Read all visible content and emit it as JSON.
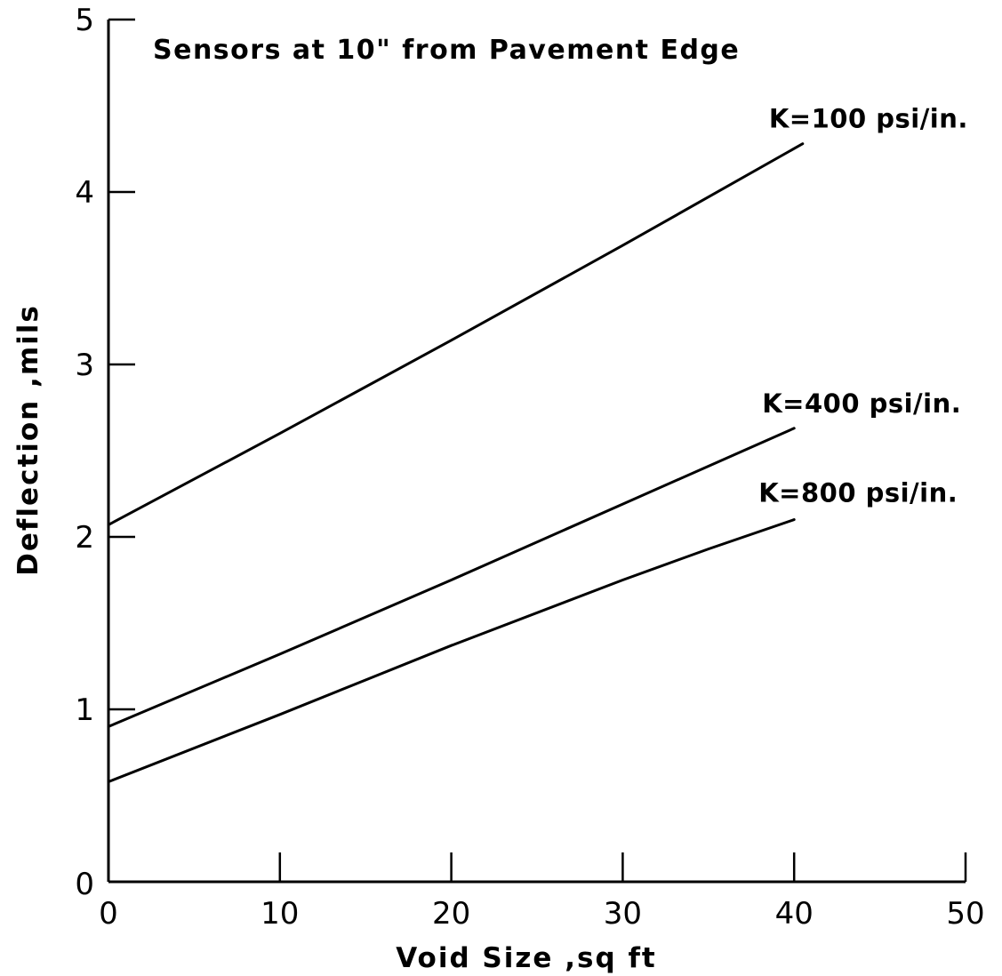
{
  "chart_data": {
    "type": "line",
    "title": "Sensors at 10\" from Pavement Edge",
    "xlabel": "Void Size ,sq ft",
    "ylabel": "Deflection ,mils",
    "xlim": [
      0,
      50
    ],
    "ylim": [
      0,
      5
    ],
    "x_ticks": [
      "0",
      "10",
      "20",
      "30",
      "40",
      "50"
    ],
    "y_ticks": [
      "0",
      "1",
      "2",
      "3",
      "4",
      "5"
    ],
    "grid": false,
    "legend": "inline labels at line ends",
    "series": [
      {
        "name": "K=100 psi/in.",
        "x": [
          0,
          10,
          20,
          30,
          40.5
        ],
        "y": [
          2.07,
          2.6,
          3.14,
          3.69,
          4.28
        ]
      },
      {
        "name": "K=400 psi/in.",
        "x": [
          0,
          10,
          20,
          30,
          40
        ],
        "y": [
          0.9,
          1.32,
          1.75,
          2.19,
          2.63
        ]
      },
      {
        "name": "K=800 psi/in.",
        "x": [
          0,
          10,
          20,
          30,
          35,
          40
        ],
        "y": [
          0.58,
          0.97,
          1.37,
          1.75,
          1.93,
          2.1
        ]
      }
    ]
  }
}
